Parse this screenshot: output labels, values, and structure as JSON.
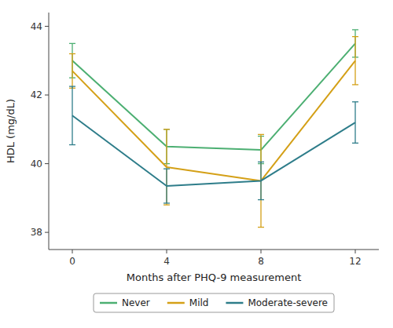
{
  "chart_data": {
    "type": "line",
    "x_label": "Months after PHQ-9 measurement",
    "y_label": "HDL (mg/dL)",
    "x": [
      0,
      4,
      8,
      12
    ],
    "series": [
      {
        "name": "Never",
        "color": "#4CAF72",
        "values": [
          43.0,
          40.5,
          40.4,
          43.5
        ],
        "errors": [
          0.5,
          0.5,
          0.4,
          0.4
        ]
      },
      {
        "name": "Mild",
        "color": "#D4A017",
        "values": [
          42.7,
          39.9,
          39.5,
          43.0
        ],
        "errors": [
          0.5,
          1.1,
          1.35,
          0.7
        ]
      },
      {
        "name": "Moderate-severe",
        "color": "#2E7D8A",
        "values": [
          41.4,
          39.35,
          39.5,
          41.2
        ],
        "errors": [
          0.85,
          0.5,
          0.55,
          0.6
        ]
      }
    ],
    "xlim": [
      -1,
      13
    ],
    "xticks": [
      0,
      4,
      8,
      12
    ],
    "ylim": [
      37.5,
      44.4
    ],
    "yticks": [
      38,
      40,
      42,
      44
    ],
    "grid": false,
    "legend": "bottom"
  }
}
